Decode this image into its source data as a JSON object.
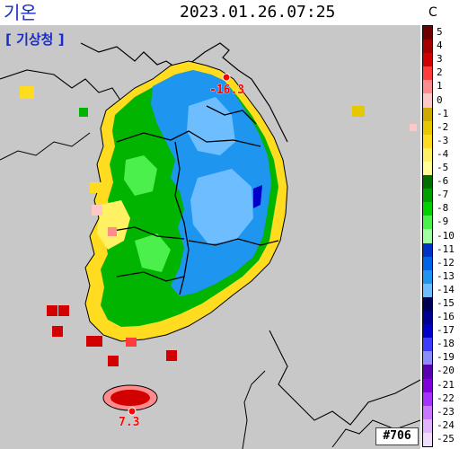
{
  "header": {
    "title": "기온",
    "timestamp": "2023.01.26.07:25",
    "agency": "[ 기상청 ]"
  },
  "legend": {
    "unit": "C",
    "entries": [
      {
        "label": "5",
        "color": "#6e0000"
      },
      {
        "label": "4",
        "color": "#a50000"
      },
      {
        "label": "3",
        "color": "#d20000"
      },
      {
        "label": "2",
        "color": "#ff3c3c"
      },
      {
        "label": "1",
        "color": "#ff8c8c"
      },
      {
        "label": "0",
        "color": "#ffc8c8"
      },
      {
        "label": "-1",
        "color": "#ccaa00"
      },
      {
        "label": "-2",
        "color": "#e6c800"
      },
      {
        "label": "-3",
        "color": "#ffdc1f"
      },
      {
        "label": "-4",
        "color": "#fff064"
      },
      {
        "label": "-5",
        "color": "#ffff96"
      },
      {
        "label": "-6",
        "color": "#006e00"
      },
      {
        "label": "-7",
        "color": "#00a000"
      },
      {
        "label": "-8",
        "color": "#00d200"
      },
      {
        "label": "-9",
        "color": "#4cf04c"
      },
      {
        "label": "-10",
        "color": "#a0ffa0"
      },
      {
        "label": "-11",
        "color": "#0032c8"
      },
      {
        "label": "-12",
        "color": "#0064e6"
      },
      {
        "label": "-13",
        "color": "#1e96f0"
      },
      {
        "label": "-14",
        "color": "#6ebeff"
      },
      {
        "label": "-15",
        "color": "#000050"
      },
      {
        "label": "-16",
        "color": "#000090"
      },
      {
        "label": "-17",
        "color": "#0000c8"
      },
      {
        "label": "-18",
        "color": "#3c3cff"
      },
      {
        "label": "-19",
        "color": "#8c8cff"
      },
      {
        "label": "-20",
        "color": "#5a00b4"
      },
      {
        "label": "-21",
        "color": "#8200dc"
      },
      {
        "label": "-22",
        "color": "#a532ff"
      },
      {
        "label": "-23",
        "color": "#c878ff"
      },
      {
        "label": "-24",
        "color": "#e1b4ff"
      },
      {
        "label": "-25",
        "color": "#f0dcff"
      }
    ]
  },
  "stations": [
    {
      "id": "min",
      "value": "-16.3",
      "color": "#ff0000"
    },
    {
      "id": "max",
      "value": "7.3",
      "color": "#ff0000"
    }
  ],
  "frame_id": "#706",
  "colors": {
    "background": "#c8c8c8",
    "sea": "#c8c8c8",
    "border": "#000000",
    "title": "#1a2bc8"
  }
}
